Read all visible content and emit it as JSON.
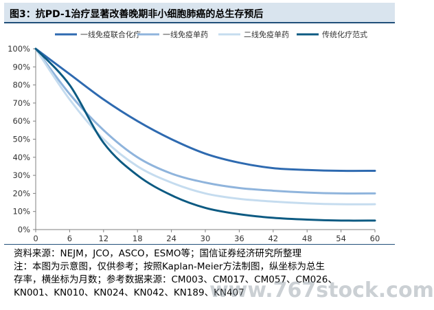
{
  "header": {
    "title": "图3：抗PD-1治疗显著改善晚期非小细胞肺癌的总生存预后"
  },
  "chart_data": {
    "type": "line",
    "x": [
      0,
      6,
      12,
      18,
      24,
      30,
      36,
      42,
      48,
      54,
      60
    ],
    "xlim": [
      0,
      60
    ],
    "ylim": [
      0,
      100
    ],
    "x_ticks": [
      "0",
      "6",
      "12",
      "18",
      "24",
      "30",
      "36",
      "42",
      "48",
      "54",
      "60"
    ],
    "y_ticks": [
      "0%",
      "10%",
      "20%",
      "30%",
      "40%",
      "50%",
      "60%",
      "70%",
      "80%",
      "90%",
      "100%"
    ],
    "legend_position": "top",
    "grid": false,
    "series": [
      {
        "name": "一线免疫联合化疗",
        "color": "#2e6ab0",
        "values": [
          100,
          86,
          72,
          60,
          50,
          42,
          37,
          34,
          33,
          32.5,
          32.5
        ]
      },
      {
        "name": "一线免疫单药",
        "color": "#8fb4dc",
        "values": [
          100,
          75,
          55,
          40,
          31,
          26,
          23,
          21.5,
          20.5,
          20,
          20
        ]
      },
      {
        "name": "二线免疫单药",
        "color": "#c5dcef",
        "values": [
          100,
          72,
          50,
          35,
          26,
          20,
          17,
          15.5,
          14.5,
          14,
          14
        ]
      },
      {
        "name": "传统化疗范式",
        "color": "#0c5a82",
        "values": [
          100,
          80,
          48,
          30,
          19,
          12,
          8.5,
          6.5,
          5.5,
          5,
          5
        ]
      }
    ]
  },
  "footer": {
    "notes": [
      "资料来源：NEJM，JCO，ASCO，ESMO等；国信证券经济研究所整理",
      "注：本图为示意图，仅供参考；按照Kaplan-Meier方法制图，纵坐标为总生",
      "存率，横坐标为月数；参考数据来源：CM003、CM017、CM057、CM026、",
      "KN001、KN010、KN024、KN042、KN189、KN407"
    ],
    "watermark": "www.767stock.com"
  }
}
